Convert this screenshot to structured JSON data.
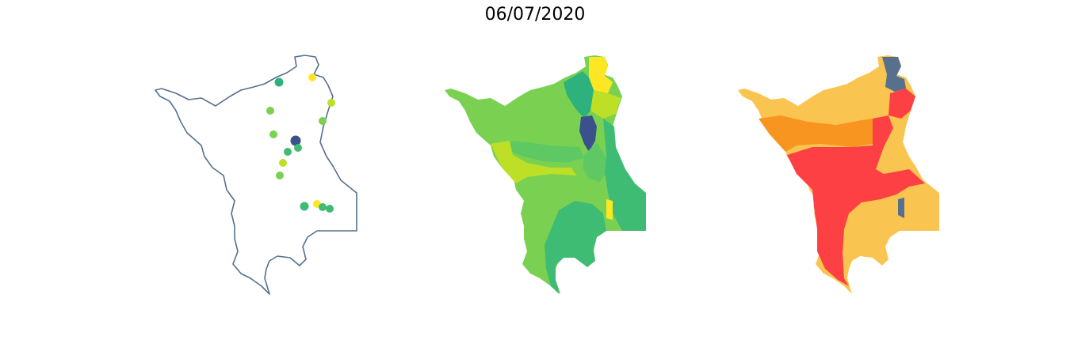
{
  "title": "06/07/2020",
  "colors": {
    "outline": "#56708d",
    "viridis_dark": "#3b518b",
    "viridis_teal": "#2db27d",
    "viridis_green": "#3fbc73",
    "viridis_mid_green": "#5ec962",
    "viridis_light_green": "#7ad151",
    "viridis_lime": "#bddf26",
    "viridis_yellow": "#fde725",
    "risk_red": "#fd4044",
    "risk_orange": "#f89520",
    "risk_yellow": "#f9c550",
    "risk_slate": "#56708d"
  },
  "panels": [
    {
      "name": "stations-map",
      "kind": "point-stations"
    },
    {
      "name": "basins-value-map",
      "kind": "choropleth-viridis"
    },
    {
      "name": "basins-risk-map",
      "kind": "choropleth-risk"
    }
  ],
  "stations": [
    {
      "id": "st-1",
      "color": "viridis_teal"
    },
    {
      "id": "st-2",
      "color": "viridis_yellow"
    },
    {
      "id": "st-3",
      "color": "viridis_lime"
    },
    {
      "id": "st-4",
      "color": "viridis_light_green"
    },
    {
      "id": "st-5",
      "color": "viridis_light_green"
    },
    {
      "id": "st-6",
      "color": "viridis_light_green"
    },
    {
      "id": "st-7",
      "color": "viridis_dark"
    },
    {
      "id": "st-8",
      "color": "viridis_green"
    },
    {
      "id": "st-9",
      "color": "viridis_green"
    },
    {
      "id": "st-10",
      "color": "viridis_lime"
    },
    {
      "id": "st-11",
      "color": "viridis_light_green"
    },
    {
      "id": "st-12",
      "color": "viridis_green"
    },
    {
      "id": "st-13",
      "color": "viridis_yellow"
    },
    {
      "id": "st-14",
      "color": "viridis_green"
    },
    {
      "id": "st-15",
      "color": "viridis_green"
    }
  ]
}
